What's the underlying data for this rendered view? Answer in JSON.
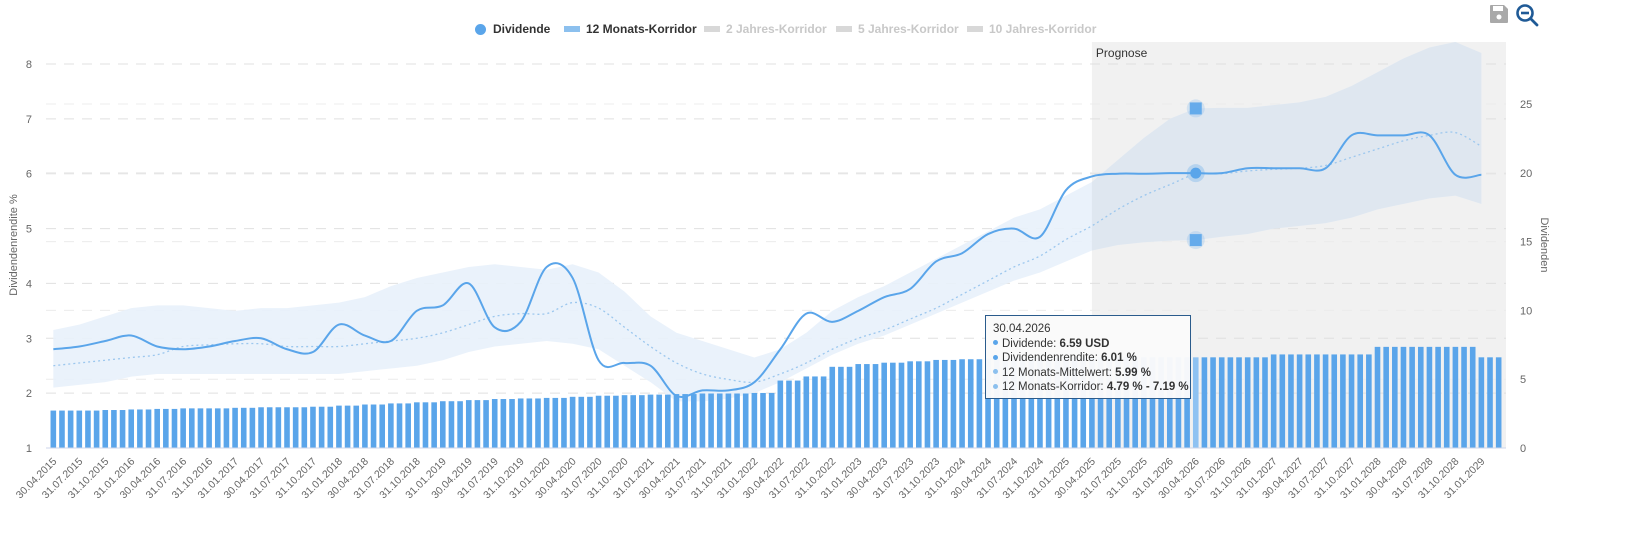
{
  "toolbar": {
    "save_icon": "save-icon",
    "zoom_out_icon": "zoom-out-icon"
  },
  "legend": [
    {
      "label": "Dividende",
      "symbol": "dot",
      "active": true
    },
    {
      "label": "12 Monats-Korridor",
      "symbol": "bar",
      "active": true
    },
    {
      "label": "2 Jahres-Korridor",
      "symbol": "bar",
      "active": false
    },
    {
      "label": "5 Jahres-Korridor",
      "symbol": "bar",
      "active": false
    },
    {
      "label": "10 Jahres-Korridor",
      "symbol": "bar",
      "active": false
    }
  ],
  "colors": {
    "bar": "#5aa5ea",
    "line": "#5aa5ea",
    "band": "#e8f1fb",
    "forecast_bg": "#f1f1f1",
    "forecast_band": "#dfe7f0",
    "grid": "#e0e0e0",
    "axis_text": "#666666",
    "tooltip_border": "#2a5b8c"
  },
  "tooltip": {
    "date": "30.04.2026",
    "rows": [
      {
        "label": "Dividende: ",
        "value": "6.59 USD",
        "color": "#5aa5ea"
      },
      {
        "label": "Dividendenrendite: ",
        "value": "6.01 %",
        "color": "#5aa5ea"
      },
      {
        "label": "12 Monats-Mittelwert: ",
        "value": "5.99 %",
        "color": "#8cc0ee"
      },
      {
        "label": "12 Monats-Korridor: ",
        "value": "4.79 % - 7.19 %",
        "color": "#8cc0ee"
      }
    ]
  },
  "chart_data": {
    "type": "bar+line+area",
    "title": "",
    "forecast_label": "Prognose",
    "forecast_start": "30.04.2025",
    "highlight": "30.04.2026",
    "left_axis": {
      "label": "Dividendenrendite %",
      "ticks": [
        1,
        2,
        3,
        4,
        5,
        6,
        7,
        8
      ],
      "range": [
        1,
        8
      ]
    },
    "right_axis": {
      "label": "Dividenden",
      "ticks": [
        0,
        5,
        10,
        15,
        20,
        25
      ],
      "range": [
        0,
        25
      ]
    },
    "x_tick_labels": [
      "30.04.2015",
      "31.07.2015",
      "31.10.2015",
      "31.01.2016",
      "30.04.2016",
      "31.07.2016",
      "31.10.2016",
      "31.01.2017",
      "30.04.2017",
      "31.07.2017",
      "31.10.2017",
      "31.01.2018",
      "30.04.2018",
      "31.07.2018",
      "31.10.2018",
      "31.01.2019",
      "30.04.2019",
      "31.07.2019",
      "31.10.2019",
      "31.01.2020",
      "30.04.2020",
      "31.07.2020",
      "31.10.2020",
      "31.01.2021",
      "30.04.2021",
      "31.07.2021",
      "31.10.2021",
      "31.01.2022",
      "30.04.2022",
      "31.07.2022",
      "31.10.2022",
      "31.01.2023",
      "30.04.2023",
      "31.07.2023",
      "31.10.2023",
      "31.01.2024",
      "30.04.2024",
      "31.07.2024",
      "31.10.2024",
      "31.01.2025",
      "30.04.2025",
      "31.07.2025",
      "31.10.2025",
      "31.01.2026",
      "30.04.2026",
      "31.07.2026",
      "31.10.2026",
      "31.01.2027",
      "30.04.2027",
      "31.07.2027",
      "31.10.2027",
      "31.01.2028",
      "30.04.2028",
      "31.07.2028",
      "31.10.2028",
      "31.01.2029"
    ],
    "series": [
      {
        "name": "Dividende",
        "axis": "right",
        "kind": "bar",
        "unit": "USD",
        "quarterly_values": [
          2.72,
          2.72,
          2.76,
          2.8,
          2.84,
          2.88,
          2.88,
          2.92,
          2.96,
          2.96,
          3.0,
          3.08,
          3.16,
          3.24,
          3.32,
          3.4,
          3.48,
          3.56,
          3.6,
          3.64,
          3.72,
          3.8,
          3.84,
          3.88,
          3.92,
          3.96,
          3.96,
          4.0,
          4.9,
          5.2,
          5.9,
          6.1,
          6.2,
          6.3,
          6.4,
          6.45,
          6.5,
          6.52,
          6.55,
          6.56,
          6.59,
          6.59,
          6.59,
          6.59,
          6.59,
          6.59,
          6.59,
          6.8,
          6.8,
          6.8,
          6.8,
          7.35,
          7.35,
          7.35,
          7.35,
          6.59
        ]
      },
      {
        "name": "Dividendenrendite",
        "axis": "left",
        "kind": "line",
        "unit": "%",
        "quarterly_values": [
          2.8,
          2.85,
          2.95,
          3.05,
          2.85,
          2.8,
          2.85,
          2.95,
          3.0,
          2.8,
          2.75,
          3.25,
          3.05,
          2.95,
          3.5,
          3.6,
          4.0,
          3.2,
          3.3,
          4.3,
          4.1,
          2.6,
          2.55,
          2.5,
          1.95,
          2.05,
          2.05,
          2.2,
          2.8,
          3.45,
          3.3,
          3.5,
          3.75,
          3.9,
          4.4,
          4.55,
          4.9,
          5.0,
          4.85,
          5.7,
          5.95,
          6.0,
          6.0,
          6.01,
          6.01,
          6.01,
          6.1,
          6.1,
          6.1,
          6.1,
          6.7,
          6.7,
          6.7,
          6.7,
          5.98,
          5.98
        ]
      },
      {
        "name": "12 Monats-Mittelwert",
        "axis": "left",
        "kind": "dotted-line",
        "unit": "%",
        "quarterly_values": [
          2.5,
          2.55,
          2.6,
          2.65,
          2.7,
          2.85,
          2.88,
          2.9,
          2.9,
          2.85,
          2.85,
          2.85,
          2.9,
          2.95,
          3.0,
          3.1,
          3.25,
          3.4,
          3.45,
          3.45,
          3.65,
          3.55,
          3.2,
          2.85,
          2.55,
          2.35,
          2.25,
          2.2,
          2.35,
          2.55,
          2.8,
          3.0,
          3.15,
          3.35,
          3.55,
          3.8,
          4.05,
          4.3,
          4.5,
          4.8,
          5.05,
          5.35,
          5.6,
          5.8,
          5.99,
          6.0,
          6.05,
          6.08,
          6.1,
          6.15,
          6.3,
          6.45,
          6.6,
          6.7,
          6.75,
          6.5
        ]
      },
      {
        "name": "12 Monats-Korridor",
        "axis": "left",
        "kind": "band",
        "unit": "%",
        "quarterly_lower": [
          2.1,
          2.15,
          2.2,
          2.3,
          2.35,
          2.35,
          2.35,
          2.35,
          2.35,
          2.35,
          2.35,
          2.35,
          2.4,
          2.45,
          2.5,
          2.6,
          2.75,
          2.85,
          2.9,
          2.95,
          2.9,
          2.8,
          2.5,
          2.2,
          1.85,
          1.85,
          1.9,
          2.0,
          2.2,
          2.45,
          2.7,
          2.9,
          3.05,
          3.25,
          3.45,
          3.65,
          3.85,
          4.05,
          4.2,
          4.4,
          4.6,
          4.7,
          4.75,
          4.78,
          4.79,
          4.85,
          4.9,
          5.0,
          5.05,
          5.1,
          5.2,
          5.35,
          5.45,
          5.55,
          5.6,
          5.45
        ],
        "quarterly_upper": [
          3.15,
          3.25,
          3.4,
          3.55,
          3.6,
          3.6,
          3.55,
          3.5,
          3.55,
          3.55,
          3.6,
          3.65,
          3.75,
          3.95,
          4.1,
          4.2,
          4.3,
          4.35,
          4.3,
          4.25,
          4.35,
          4.2,
          3.85,
          3.4,
          3.1,
          2.95,
          2.8,
          2.65,
          2.8,
          3.1,
          3.5,
          3.75,
          3.95,
          4.2,
          4.45,
          4.7,
          4.95,
          5.2,
          5.35,
          5.6,
          5.85,
          6.25,
          6.65,
          7.0,
          7.19,
          7.2,
          7.2,
          7.25,
          7.3,
          7.4,
          7.6,
          7.85,
          8.1,
          8.3,
          8.4,
          8.2
        ]
      }
    ]
  }
}
